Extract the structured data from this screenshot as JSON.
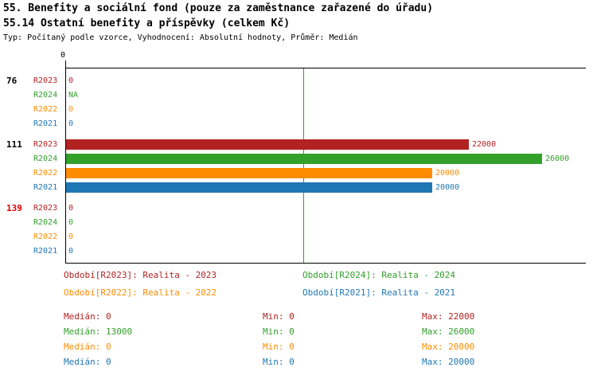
{
  "chart_data": {
    "type": "bar",
    "orientation": "horizontal",
    "title": "55. Benefity a sociální fond (pouze za zaměstnance zařazené do úřadu)",
    "subtitle": "55.14 Ostatní benefity a příspěvky (celkem Kč)",
    "meta": "Typ: Počítaný podle vzorce, Vyhodnocení: Absolutní hodnoty, Průměr: Medián",
    "axis": {
      "origin_label": "0",
      "xlim": [
        0,
        26000
      ],
      "grid": false,
      "median_line_value": 13000,
      "median_line_color": "#33A02C"
    },
    "series_colors": {
      "R2023": "#B22222",
      "R2024": "#33A02C",
      "R2022": "#FF8C00",
      "R2021": "#1F77B4"
    },
    "groups": [
      {
        "label": "76",
        "label_color": "#000000",
        "rows": [
          {
            "series": "R2023",
            "value": 0,
            "display": "0"
          },
          {
            "series": "R2024",
            "value": null,
            "display": "NA"
          },
          {
            "series": "R2022",
            "value": 0,
            "display": "0"
          },
          {
            "series": "R2021",
            "value": 0,
            "display": "0"
          }
        ]
      },
      {
        "label": "111",
        "label_color": "#000000",
        "rows": [
          {
            "series": "R2023",
            "value": 22000,
            "display": "22000"
          },
          {
            "series": "R2024",
            "value": 26000,
            "display": "26000"
          },
          {
            "series": "R2022",
            "value": 20000,
            "display": "20000"
          },
          {
            "series": "R2021",
            "value": 20000,
            "display": "20000"
          }
        ]
      },
      {
        "label": "139",
        "label_color": "#DD0000",
        "rows": [
          {
            "series": "R2023",
            "value": 0,
            "display": "0"
          },
          {
            "series": "R2024",
            "value": 0,
            "display": "0"
          },
          {
            "series": "R2022",
            "value": 0,
            "display": "0"
          },
          {
            "series": "R2021",
            "value": 0,
            "display": "0"
          }
        ]
      }
    ],
    "legend": [
      {
        "label": "Období[R2023]: Realita - 2023",
        "color": "#B22222"
      },
      {
        "label": "Období[R2024]: Realita - 2024",
        "color": "#33A02C"
      },
      {
        "label": "Období[R2022]: Realita - 2022",
        "color": "#FF8C00"
      },
      {
        "label": "Období[R2021]: Realita - 2021",
        "color": "#1F77B4"
      }
    ],
    "stat_labels": {
      "median": "Medián",
      "min": "Min",
      "max": "Max"
    },
    "stats": [
      {
        "series": "R2023",
        "color": "#B22222",
        "median": 0,
        "min": 0,
        "max": 22000
      },
      {
        "series": "R2024",
        "color": "#33A02C",
        "median": 13000,
        "min": 0,
        "max": 26000
      },
      {
        "series": "R2022",
        "color": "#FF8C00",
        "median": 0,
        "min": 0,
        "max": 20000
      },
      {
        "series": "R2021",
        "color": "#1F77B4",
        "median": 0,
        "min": 0,
        "max": 20000
      }
    ]
  }
}
